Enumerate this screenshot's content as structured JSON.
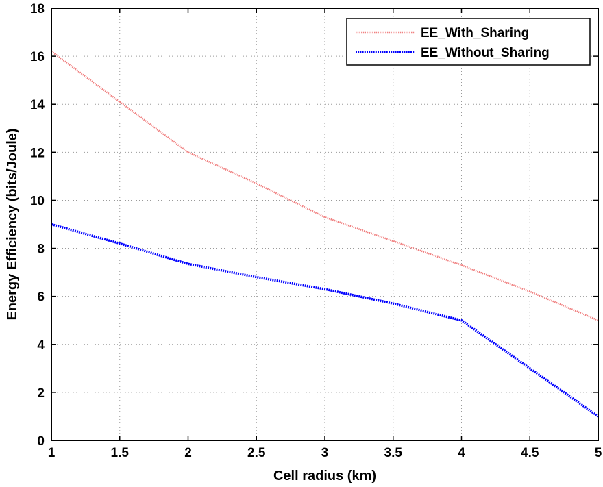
{
  "chart_data": {
    "type": "line",
    "xlabel": "Cell radius (km)",
    "ylabel": "Energy Efficiency (bits/Joule)",
    "xlim": [
      1,
      5
    ],
    "ylim": [
      0,
      18
    ],
    "xticks": [
      1,
      1.5,
      2,
      2.5,
      3,
      3.5,
      4,
      4.5,
      5
    ],
    "xtick_labels": [
      "1",
      "1.5",
      "2",
      "2.5",
      "3",
      "3.5",
      "4",
      "4.5",
      "5"
    ],
    "yticks": [
      0,
      2,
      4,
      6,
      8,
      10,
      12,
      14,
      16,
      18
    ],
    "ytick_labels": [
      "0",
      "2",
      "4",
      "6",
      "8",
      "10",
      "12",
      "14",
      "16",
      "18"
    ],
    "grid": true,
    "legend_position": "top-right",
    "series": [
      {
        "name": "EE_With_Sharing",
        "color": "#f08080",
        "style": "dotted",
        "x": [
          1,
          1.5,
          2,
          2.5,
          3,
          3.5,
          4,
          4.5,
          5
        ],
        "y": [
          16.2,
          14.1,
          12.0,
          10.7,
          9.3,
          8.3,
          7.3,
          6.2,
          5.0
        ]
      },
      {
        "name": "EE_Without_Sharing",
        "color": "#0000ff",
        "style": "dotted",
        "x": [
          1,
          1.5,
          2,
          2.5,
          3,
          3.5,
          4,
          4.5,
          5
        ],
        "y": [
          9.0,
          8.2,
          7.35,
          6.8,
          6.3,
          5.7,
          5.0,
          3.0,
          1.0
        ]
      }
    ]
  }
}
